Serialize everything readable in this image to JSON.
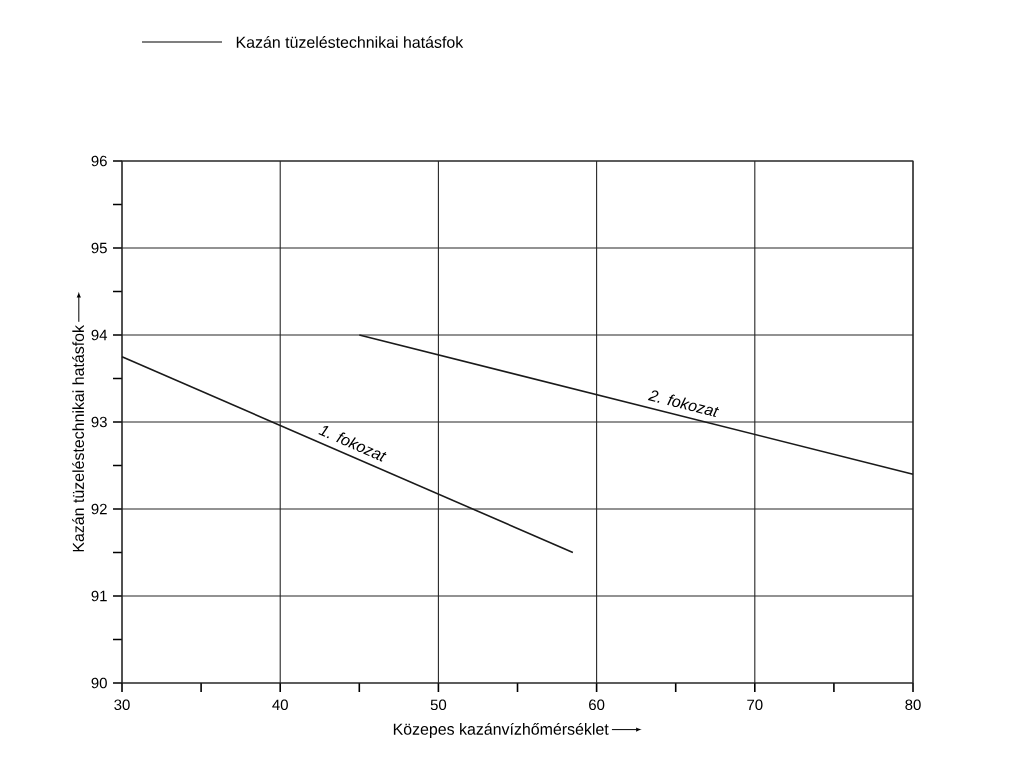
{
  "chart_data": {
    "type": "line",
    "xlabel": "Közepes kazánvízhőmérséklet",
    "ylabel": "Kazán tüzeléstechnikai hatásfok",
    "annotations": [
      "Kazán tüzeléstechnikai hatásfok"
    ],
    "xlim": [
      30,
      80
    ],
    "ylim": [
      90,
      96
    ],
    "xticks": [
      30,
      {
        "value": 35,
        "label": null
      },
      40,
      {
        "value": 45,
        "label": null
      },
      50,
      {
        "value": 55,
        "label": null
      },
      60,
      {
        "value": 65,
        "label": null
      },
      70,
      {
        "value": 75,
        "label": null
      },
      80
    ],
    "yticks": [
      90,
      {
        "value": 90.5,
        "label": null
      },
      91,
      {
        "value": 91.5,
        "label": null
      },
      92,
      {
        "value": 92.5,
        "label": null
      },
      93,
      {
        "value": 93.5,
        "label": null
      },
      94,
      {
        "value": 94.5,
        "label": null
      },
      95,
      {
        "value": 95.5,
        "label": null
      },
      96
    ],
    "grid": true,
    "line_style": "solid",
    "series": [
      {
        "name": "1. fokozat",
        "color": "#1a1a1a",
        "x": [
          30,
          58.5
        ],
        "values": [
          93.75,
          91.5
        ]
      },
      {
        "name": "2. fokozat",
        "color": "#1a1a1a",
        "x": [
          45,
          80
        ],
        "values": [
          94.0,
          92.4
        ]
      }
    ]
  }
}
